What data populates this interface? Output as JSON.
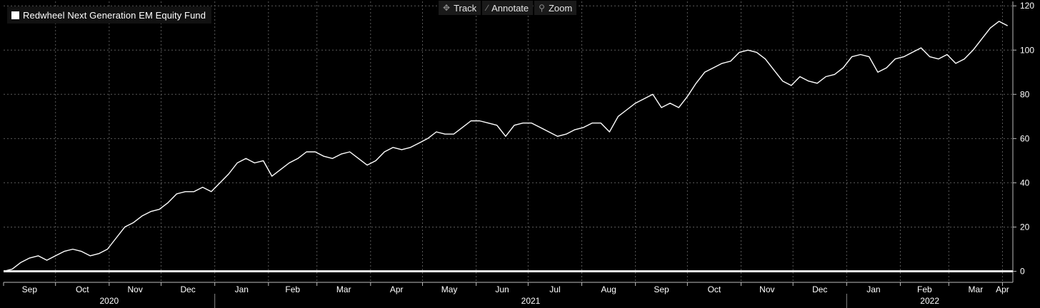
{
  "toolbar": {
    "track_label": "Track",
    "annotate_label": "Annotate",
    "zoom_label": "Zoom",
    "track_icon": "crosshair-icon",
    "annotate_icon": "pencil-icon",
    "zoom_icon": "magnifier-icon"
  },
  "colors": {
    "background": "#000000",
    "line": "#ffffff",
    "grid": "#5a5a5a",
    "baseline": "#e8e8e8"
  },
  "chart_data": {
    "type": "line",
    "title": "",
    "xlabel": "",
    "ylabel": "",
    "x_axis": "date",
    "xlim": [
      "2020-09-01",
      "2022-04-07"
    ],
    "ylim": [
      -5,
      122
    ],
    "yticks": [
      0,
      20,
      40,
      60,
      80,
      100,
      120
    ],
    "month_ticks": [
      {
        "date": "2020-09-01",
        "label": "Sep"
      },
      {
        "date": "2020-10-01",
        "label": "Oct"
      },
      {
        "date": "2020-11-01",
        "label": "Nov"
      },
      {
        "date": "2020-12-01",
        "label": "Dec"
      },
      {
        "date": "2021-01-01",
        "label": "Jan"
      },
      {
        "date": "2021-02-01",
        "label": "Feb"
      },
      {
        "date": "2021-03-01",
        "label": "Mar"
      },
      {
        "date": "2021-04-01",
        "label": "Apr"
      },
      {
        "date": "2021-05-01",
        "label": "May"
      },
      {
        "date": "2021-06-01",
        "label": "Jun"
      },
      {
        "date": "2021-07-01",
        "label": "Jul"
      },
      {
        "date": "2021-08-01",
        "label": "Aug"
      },
      {
        "date": "2021-09-01",
        "label": "Sep"
      },
      {
        "date": "2021-10-01",
        "label": "Oct"
      },
      {
        "date": "2021-11-01",
        "label": "Nov"
      },
      {
        "date": "2021-12-01",
        "label": "Dec"
      },
      {
        "date": "2022-01-01",
        "label": "Jan"
      },
      {
        "date": "2022-02-01",
        "label": "Feb"
      },
      {
        "date": "2022-03-01",
        "label": "Mar"
      },
      {
        "date": "2022-04-01",
        "label": "Apr"
      }
    ],
    "year_labels": [
      {
        "label": "2020",
        "from": "2020-09-01",
        "to": "2021-01-01"
      },
      {
        "label": "2021",
        "from": "2021-01-01",
        "to": "2022-01-01"
      },
      {
        "label": "2022",
        "from": "2022-01-01",
        "to": "2022-04-07"
      }
    ],
    "grid": true,
    "legend_position": "top-left",
    "reference_line": {
      "y": 0
    },
    "series": [
      {
        "name": "Redwheel Next Generation EM Equity Fund",
        "color": "#ffffff",
        "points": [
          [
            "2020-09-01",
            0
          ],
          [
            "2020-09-06",
            1
          ],
          [
            "2020-09-11",
            4
          ],
          [
            "2020-09-16",
            6
          ],
          [
            "2020-09-21",
            7
          ],
          [
            "2020-09-26",
            5
          ],
          [
            "2020-10-01",
            7
          ],
          [
            "2020-10-06",
            9
          ],
          [
            "2020-10-11",
            10
          ],
          [
            "2020-10-16",
            9
          ],
          [
            "2020-10-21",
            7
          ],
          [
            "2020-10-26",
            8
          ],
          [
            "2020-10-31",
            10
          ],
          [
            "2020-11-05",
            15
          ],
          [
            "2020-11-10",
            20
          ],
          [
            "2020-11-15",
            22
          ],
          [
            "2020-11-20",
            25
          ],
          [
            "2020-11-25",
            27
          ],
          [
            "2020-11-30",
            28
          ],
          [
            "2020-12-05",
            31
          ],
          [
            "2020-12-10",
            35
          ],
          [
            "2020-12-15",
            36
          ],
          [
            "2020-12-20",
            36
          ],
          [
            "2020-12-25",
            38
          ],
          [
            "2020-12-30",
            36
          ],
          [
            "2021-01-04",
            40
          ],
          [
            "2021-01-09",
            44
          ],
          [
            "2021-01-14",
            49
          ],
          [
            "2021-01-19",
            51
          ],
          [
            "2021-01-24",
            49
          ],
          [
            "2021-01-29",
            50
          ],
          [
            "2021-02-03",
            43
          ],
          [
            "2021-02-08",
            46
          ],
          [
            "2021-02-13",
            49
          ],
          [
            "2021-02-18",
            51
          ],
          [
            "2021-02-23",
            54
          ],
          [
            "2021-02-28",
            54
          ],
          [
            "2021-03-05",
            52
          ],
          [
            "2021-03-10",
            51
          ],
          [
            "2021-03-15",
            53
          ],
          [
            "2021-03-20",
            54
          ],
          [
            "2021-03-25",
            51
          ],
          [
            "2021-03-30",
            48
          ],
          [
            "2021-04-04",
            50
          ],
          [
            "2021-04-09",
            54
          ],
          [
            "2021-04-14",
            56
          ],
          [
            "2021-04-19",
            55
          ],
          [
            "2021-04-24",
            56
          ],
          [
            "2021-04-29",
            58
          ],
          [
            "2021-05-04",
            60
          ],
          [
            "2021-05-09",
            63
          ],
          [
            "2021-05-14",
            62
          ],
          [
            "2021-05-19",
            62
          ],
          [
            "2021-05-24",
            65
          ],
          [
            "2021-05-29",
            68
          ],
          [
            "2021-06-03",
            68
          ],
          [
            "2021-06-08",
            67
          ],
          [
            "2021-06-13",
            66
          ],
          [
            "2021-06-18",
            61
          ],
          [
            "2021-06-23",
            66
          ],
          [
            "2021-06-28",
            67
          ],
          [
            "2021-07-03",
            67
          ],
          [
            "2021-07-08",
            65
          ],
          [
            "2021-07-13",
            63
          ],
          [
            "2021-07-18",
            61
          ],
          [
            "2021-07-23",
            62
          ],
          [
            "2021-07-28",
            64
          ],
          [
            "2021-08-02",
            65
          ],
          [
            "2021-08-07",
            67
          ],
          [
            "2021-08-12",
            67
          ],
          [
            "2021-08-17",
            63
          ],
          [
            "2021-08-22",
            70
          ],
          [
            "2021-08-27",
            73
          ],
          [
            "2021-09-01",
            76
          ],
          [
            "2021-09-06",
            78
          ],
          [
            "2021-09-11",
            80
          ],
          [
            "2021-09-16",
            74
          ],
          [
            "2021-09-21",
            76
          ],
          [
            "2021-09-26",
            74
          ],
          [
            "2021-10-01",
            79
          ],
          [
            "2021-10-06",
            85
          ],
          [
            "2021-10-11",
            90
          ],
          [
            "2021-10-16",
            92
          ],
          [
            "2021-10-21",
            94
          ],
          [
            "2021-10-26",
            95
          ],
          [
            "2021-10-31",
            99
          ],
          [
            "2021-11-05",
            100
          ],
          [
            "2021-11-10",
            99
          ],
          [
            "2021-11-15",
            96
          ],
          [
            "2021-11-20",
            91
          ],
          [
            "2021-11-25",
            86
          ],
          [
            "2021-11-30",
            84
          ],
          [
            "2021-12-05",
            88
          ],
          [
            "2021-12-10",
            86
          ],
          [
            "2021-12-15",
            85
          ],
          [
            "2021-12-20",
            88
          ],
          [
            "2021-12-25",
            89
          ],
          [
            "2021-12-30",
            92
          ],
          [
            "2022-01-04",
            97
          ],
          [
            "2022-01-09",
            98
          ],
          [
            "2022-01-14",
            97
          ],
          [
            "2022-01-19",
            90
          ],
          [
            "2022-01-24",
            92
          ],
          [
            "2022-01-29",
            96
          ],
          [
            "2022-02-03",
            97
          ],
          [
            "2022-02-08",
            99
          ],
          [
            "2022-02-13",
            101
          ],
          [
            "2022-02-18",
            97
          ],
          [
            "2022-02-23",
            96
          ],
          [
            "2022-02-28",
            98
          ],
          [
            "2022-03-05",
            94
          ],
          [
            "2022-03-10",
            96
          ],
          [
            "2022-03-15",
            100
          ],
          [
            "2022-03-20",
            105
          ],
          [
            "2022-03-25",
            110
          ],
          [
            "2022-03-30",
            113
          ],
          [
            "2022-04-04",
            111
          ]
        ]
      }
    ]
  }
}
